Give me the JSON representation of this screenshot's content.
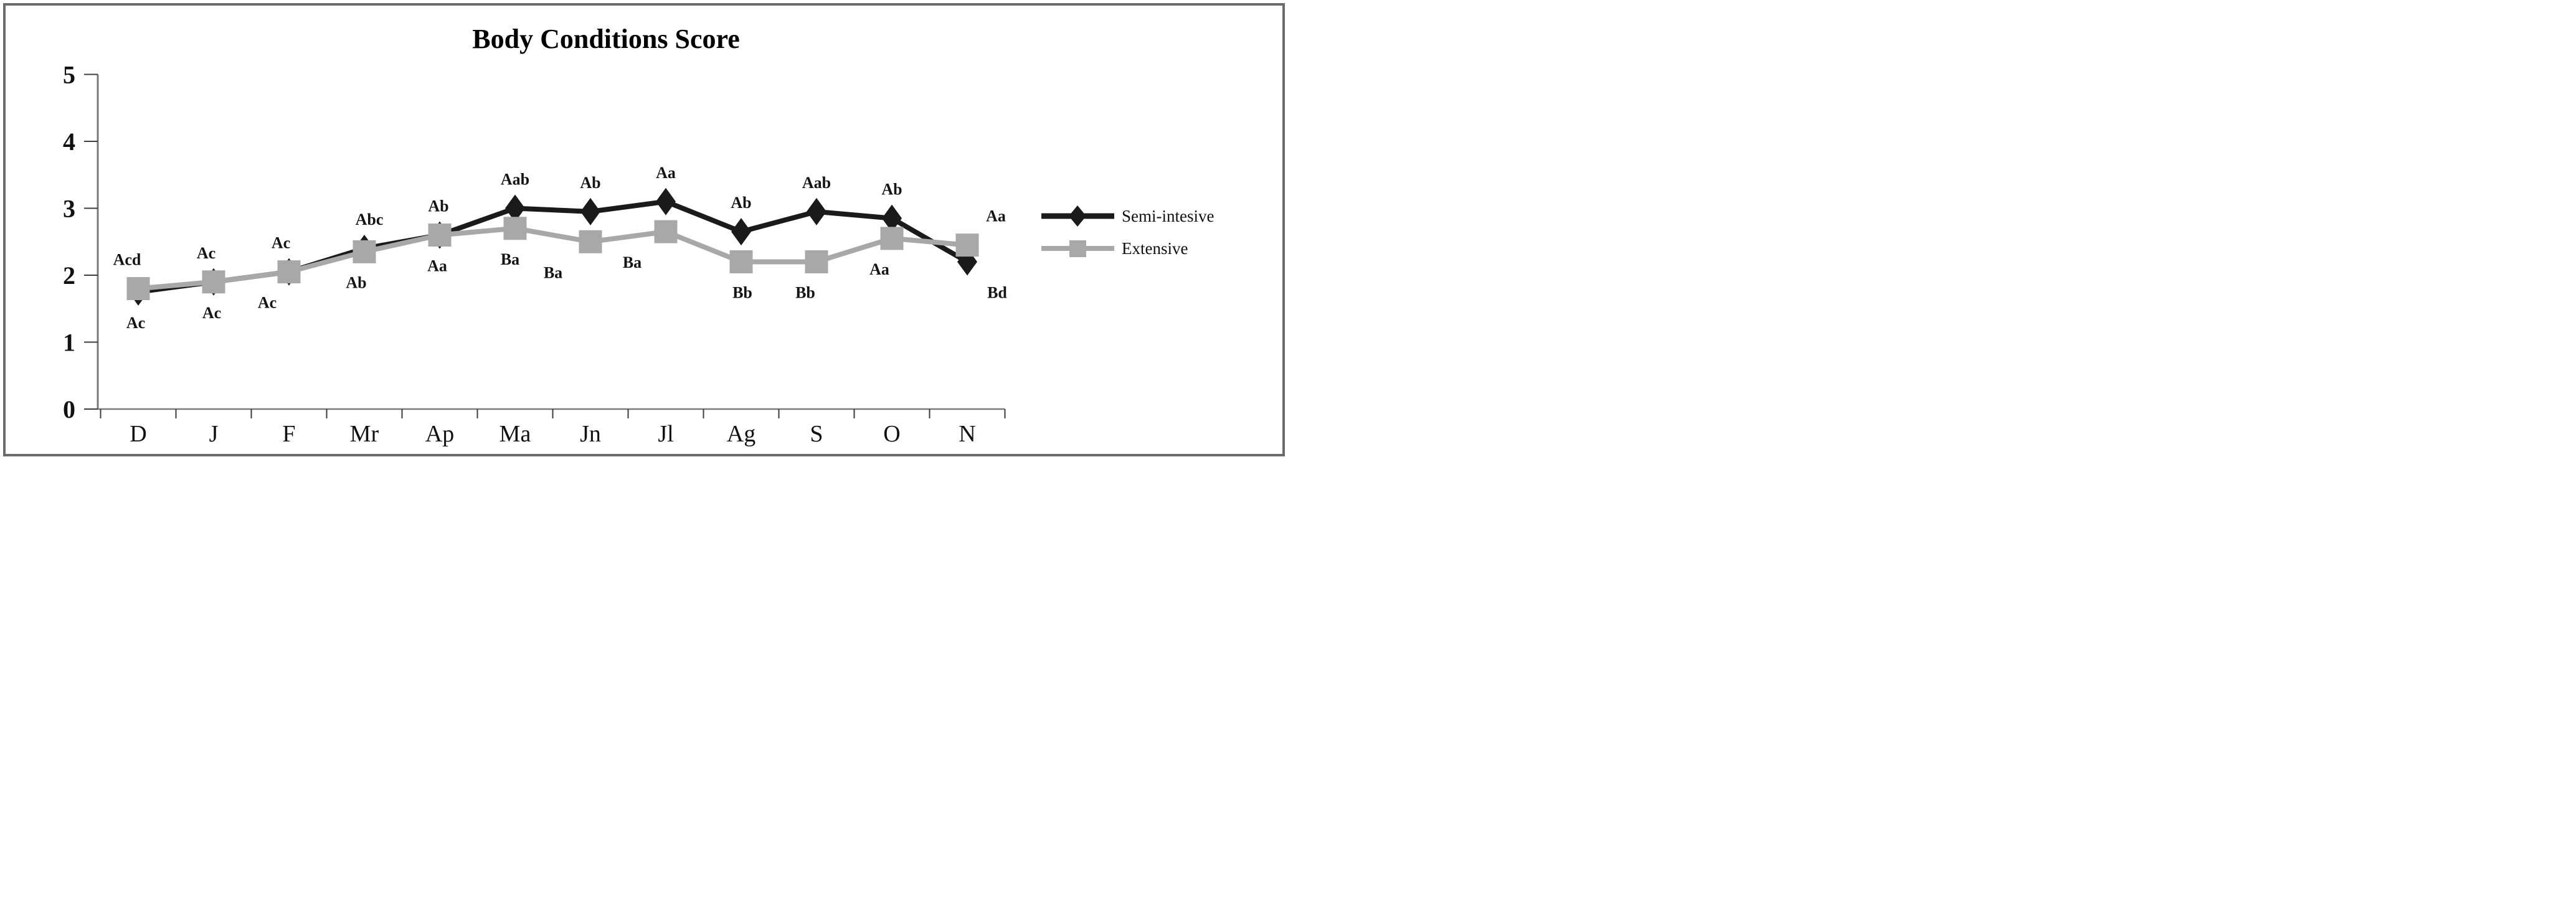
{
  "figure": {
    "background": "#ffffff",
    "border_color": "#6b6b6b"
  },
  "chart_data": {
    "type": "line",
    "title": "Body Conditions Score",
    "categories": [
      "D",
      "J",
      "F",
      "Mr",
      "Ap",
      "Ma",
      "Jn",
      "Jl",
      "Ag",
      "S",
      "O",
      "N"
    ],
    "xlabel": "",
    "ylabel": "",
    "ylim": [
      0,
      5
    ],
    "y_ticks": [
      0,
      1,
      2,
      3,
      4,
      5
    ],
    "grid": false,
    "legend_position": "right-middle",
    "axis_color": "#7a7a7a",
    "tick_color": "#3c3c3c",
    "label_color": "#111111",
    "series": [
      {
        "name": "Semi-intesive",
        "color": "#1a1a1a",
        "marker": "diamond",
        "values": [
          1.75,
          1.9,
          2.05,
          2.4,
          2.6,
          3.0,
          2.95,
          3.1,
          2.65,
          2.95,
          2.85,
          2.2
        ]
      },
      {
        "name": "Extensive",
        "color": "#a8a8a8",
        "marker": "square",
        "values": [
          1.8,
          1.9,
          2.05,
          2.35,
          2.6,
          2.7,
          2.5,
          2.65,
          2.2,
          2.2,
          2.55,
          2.45
        ]
      }
    ],
    "point_labels": {
      "above": [
        "Acd",
        "Ac",
        "Ac",
        "Abc",
        "Ab",
        "Aab",
        "Ab",
        "Aa",
        "Ab",
        "Aab",
        "Ab",
        "Aa"
      ],
      "below": [
        "Ac",
        "Ac",
        "Ac",
        "Ab",
        "Aa",
        "Ba",
        "Ba",
        "Ba",
        "Bb",
        "Bb",
        "Aa",
        "Bd"
      ]
    }
  }
}
